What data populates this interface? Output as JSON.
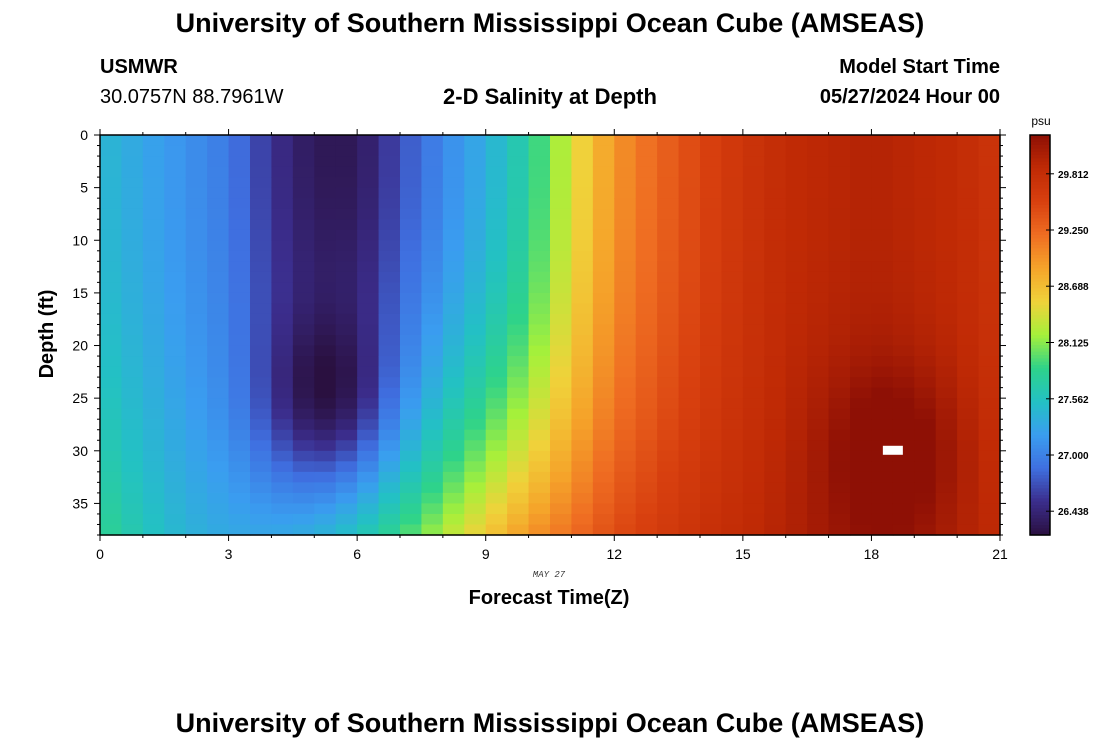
{
  "header": {
    "title": "University of Southern Mississippi Ocean Cube (AMSEAS)",
    "station": "USMWR",
    "coordinates": "30.0757N  88.7961W",
    "subtitle": "2-D Salinity at Depth",
    "model_start_label": "Model Start Time",
    "model_start_value": "05/27/2024 Hour 00"
  },
  "footer": {
    "title": "University of Southern Mississippi Ocean Cube (AMSEAS)"
  },
  "chart_data": {
    "type": "heatmap",
    "title": "2-D Salinity at Depth",
    "xlabel": "Forecast Time(Z)",
    "ylabel": "Depth (ft)",
    "date_label": "MAY 27",
    "xlim": [
      0,
      21
    ],
    "ylim": [
      38,
      0
    ],
    "xticks": [
      0,
      3,
      6,
      9,
      12,
      15,
      18,
      21
    ],
    "yticks": [
      0,
      5,
      10,
      15,
      20,
      25,
      30,
      35
    ],
    "x_step_hours": 0.5,
    "depth_step_ft": 1,
    "colorbar": {
      "unit": "psu",
      "min": 26.2,
      "max": 30.2,
      "ticks": [
        "26.438",
        "27.000",
        "27.562",
        "28.125",
        "28.688",
        "29.250",
        "29.812"
      ],
      "colors": [
        "#2a1040",
        "#3b2d8c",
        "#3f6fe0",
        "#3a9df0",
        "#23c1c4",
        "#2ed38a",
        "#a6f03a",
        "#f0d23a",
        "#f5a42a",
        "#ef6d22",
        "#d8400f",
        "#c02a05",
        "#8e1005"
      ]
    },
    "salinity_profile_by_hour": {
      "hours": [
        0,
        1,
        2,
        3,
        4,
        5,
        6,
        7,
        8,
        9,
        10,
        11,
        12,
        13,
        14,
        15,
        16,
        17,
        18,
        19,
        20,
        21
      ],
      "surface_psu": [
        27.45,
        27.28,
        27.12,
        26.95,
        26.55,
        26.3,
        26.3,
        26.7,
        27.05,
        27.35,
        27.75,
        28.4,
        28.95,
        29.25,
        29.5,
        29.7,
        29.85,
        29.9,
        29.95,
        29.9,
        29.85,
        29.7
      ],
      "bottom_psu": [
        27.85,
        27.6,
        27.4,
        27.3,
        27.3,
        27.4,
        27.6,
        27.9,
        28.25,
        28.6,
        28.95,
        29.2,
        29.45,
        29.6,
        29.75,
        29.85,
        29.95,
        30.05,
        30.1,
        30.05,
        29.95,
        29.85
      ]
    },
    "features": [
      {
        "name": "low-salinity core",
        "time_hours": 5.3,
        "depth_ft": 25.5,
        "psu": 26.25
      },
      {
        "name": "high-salinity core",
        "time_hours": 18.5,
        "depth_ft": 30,
        "psu": 30.15
      },
      {
        "name": "station marker",
        "time_hours": 18.5,
        "depth_ft": 30
      }
    ]
  }
}
